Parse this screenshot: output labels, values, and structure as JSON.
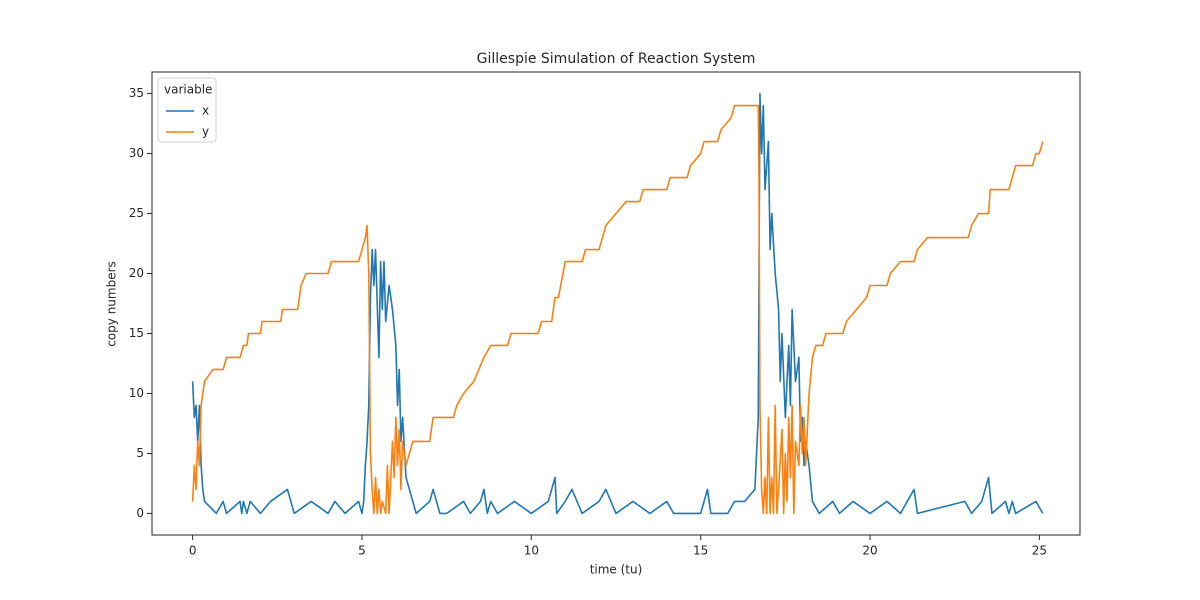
{
  "chart_data": {
    "type": "line",
    "title": "Gillespie Simulation of Reaction System",
    "x_label": "time (tu)",
    "y_label": "copy numbers",
    "legend_title": "variable",
    "legend_position": "upper left",
    "grid": false,
    "xlim": [
      -1.2,
      26.2
    ],
    "ylim": [
      -1.8,
      36.8
    ],
    "xticks": [
      0,
      5,
      10,
      15,
      20,
      25
    ],
    "yticks": [
      0,
      5,
      10,
      15,
      20,
      25,
      30,
      35
    ],
    "series": [
      {
        "name": "x",
        "color": "#1f77b4",
        "x": [
          0,
          0.05,
          0.1,
          0.15,
          0.2,
          0.25,
          0.3,
          0.35,
          0.7,
          0.9,
          1.0,
          1.4,
          1.45,
          1.5,
          1.6,
          1.7,
          2.0,
          2.3,
          2.8,
          3.0,
          3.5,
          4.0,
          4.2,
          4.5,
          4.9,
          5.0,
          5.05,
          5.1,
          5.15,
          5.2,
          5.25,
          5.3,
          5.35,
          5.4,
          5.5,
          5.55,
          5.6,
          5.65,
          5.7,
          5.8,
          5.9,
          6.0,
          6.05,
          6.1,
          6.15,
          6.2,
          6.3,
          6.4,
          6.5,
          6.6,
          7.0,
          7.1,
          7.2,
          7.3,
          7.5,
          8.0,
          8.2,
          8.5,
          8.6,
          8.7,
          8.8,
          9.0,
          9.5,
          10.0,
          10.5,
          10.7,
          10.75,
          11.0,
          11.2,
          11.5,
          12.0,
          12.2,
          12.5,
          13.0,
          13.5,
          14.0,
          14.2,
          15.0,
          15.2,
          15.3,
          15.8,
          16.0,
          16.3,
          16.6,
          16.7,
          16.75,
          16.8,
          16.85,
          16.9,
          17.0,
          17.05,
          17.1,
          17.2,
          17.3,
          17.35,
          17.4,
          17.5,
          17.6,
          17.65,
          17.7,
          17.8,
          17.9,
          17.95,
          18.0,
          18.05,
          18.1,
          18.2,
          18.3,
          18.5,
          18.9,
          19.1,
          19.5,
          20.0,
          20.5,
          20.9,
          21.3,
          21.4,
          22.8,
          23.0,
          23.3,
          23.5,
          23.6,
          24.0,
          24.1,
          24.2,
          24.3,
          24.9,
          25.1
        ],
        "values": [
          11,
          8,
          9,
          6,
          9,
          4,
          2,
          1,
          0,
          1,
          0,
          1,
          0,
          1,
          0,
          1,
          0,
          1,
          2,
          0,
          1,
          0,
          1,
          0,
          1,
          0,
          1,
          4,
          6,
          9,
          18,
          22,
          19,
          22,
          13,
          21,
          17,
          21,
          16,
          19,
          17,
          14,
          9,
          12,
          6,
          8,
          3,
          2,
          1,
          0,
          1,
          2,
          1,
          0,
          0,
          1,
          0,
          1,
          2,
          0,
          1,
          0,
          1,
          0,
          1,
          3,
          0,
          1,
          2,
          0,
          1,
          2,
          0,
          1,
          0,
          1,
          0,
          0,
          2,
          0,
          0,
          1,
          1,
          2,
          8,
          35,
          30,
          34,
          27,
          31,
          22,
          25,
          20,
          17,
          11,
          15,
          8,
          14,
          9,
          17,
          11,
          13,
          6,
          8,
          4,
          6,
          4,
          1,
          0,
          1,
          0,
          1,
          0,
          1,
          0,
          2,
          0,
          1,
          0,
          1,
          3,
          0,
          1,
          0,
          1,
          0,
          1,
          0
        ]
      },
      {
        "name": "y",
        "color": "#ff7f0e",
        "x": [
          0,
          0.05,
          0.1,
          0.15,
          0.2,
          0.25,
          0.35,
          0.6,
          0.9,
          1.0,
          1.4,
          1.5,
          1.6,
          1.65,
          2.0,
          2.05,
          2.6,
          2.65,
          3.1,
          3.2,
          3.35,
          4.0,
          4.1,
          4.9,
          5.0,
          5.1,
          5.15,
          5.2,
          5.25,
          5.3,
          5.35,
          5.4,
          5.45,
          5.5,
          5.55,
          5.6,
          5.7,
          5.75,
          5.8,
          5.9,
          5.95,
          6.0,
          6.05,
          6.1,
          6.15,
          6.2,
          6.3,
          6.4,
          6.5,
          7.0,
          7.1,
          7.7,
          7.8,
          8.0,
          8.3,
          8.6,
          8.8,
          9.3,
          9.4,
          10.2,
          10.3,
          10.6,
          10.7,
          10.8,
          11.0,
          11.5,
          11.6,
          12.0,
          12.1,
          12.2,
          12.5,
          12.8,
          13.2,
          13.3,
          14.0,
          14.1,
          14.6,
          14.7,
          15.0,
          15.1,
          15.5,
          15.6,
          15.9,
          16.0,
          16.7,
          16.72,
          16.75,
          16.8,
          16.85,
          16.9,
          16.95,
          17.0,
          17.05,
          17.1,
          17.15,
          17.2,
          17.25,
          17.3,
          17.4,
          17.45,
          17.5,
          17.55,
          17.6,
          17.65,
          17.7,
          17.75,
          17.8,
          17.9,
          17.95,
          18.0,
          18.05,
          18.1,
          18.2,
          18.3,
          18.4,
          18.6,
          18.7,
          19.2,
          19.3,
          19.6,
          19.9,
          20.0,
          20.5,
          20.6,
          20.9,
          21.3,
          21.4,
          21.7,
          22.9,
          23.0,
          23.2,
          23.5,
          23.55,
          24.1,
          24.2,
          24.3,
          24.8,
          24.9,
          25.0,
          25.1
        ],
        "values": [
          1,
          4,
          2,
          6,
          4,
          9,
          11,
          12,
          12,
          13,
          13,
          14,
          14,
          15,
          15,
          16,
          16,
          17,
          17,
          19,
          20,
          20,
          21,
          21,
          22,
          23,
          24,
          20,
          5,
          2,
          0,
          3,
          0,
          2,
          0,
          1,
          0,
          4,
          0,
          6,
          3,
          8,
          4,
          7,
          2,
          6,
          4,
          5,
          6,
          6,
          8,
          8,
          9,
          10,
          11,
          13,
          14,
          14,
          15,
          15,
          16,
          16,
          18,
          18,
          21,
          21,
          22,
          22,
          23,
          24,
          25,
          26,
          26,
          27,
          27,
          28,
          28,
          29,
          30,
          31,
          31,
          32,
          33,
          34,
          34,
          29,
          9,
          2,
          0,
          3,
          0,
          8,
          0,
          3,
          0,
          9,
          0,
          2,
          7,
          0,
          5,
          1,
          8,
          3,
          9,
          0,
          6,
          4,
          9,
          5,
          8,
          4,
          10,
          13,
          14,
          14,
          15,
          15,
          16,
          17,
          18,
          19,
          19,
          20,
          21,
          21,
          22,
          23,
          23,
          24,
          25,
          25,
          27,
          27,
          28,
          29,
          29,
          30,
          30,
          31
        ]
      }
    ]
  }
}
